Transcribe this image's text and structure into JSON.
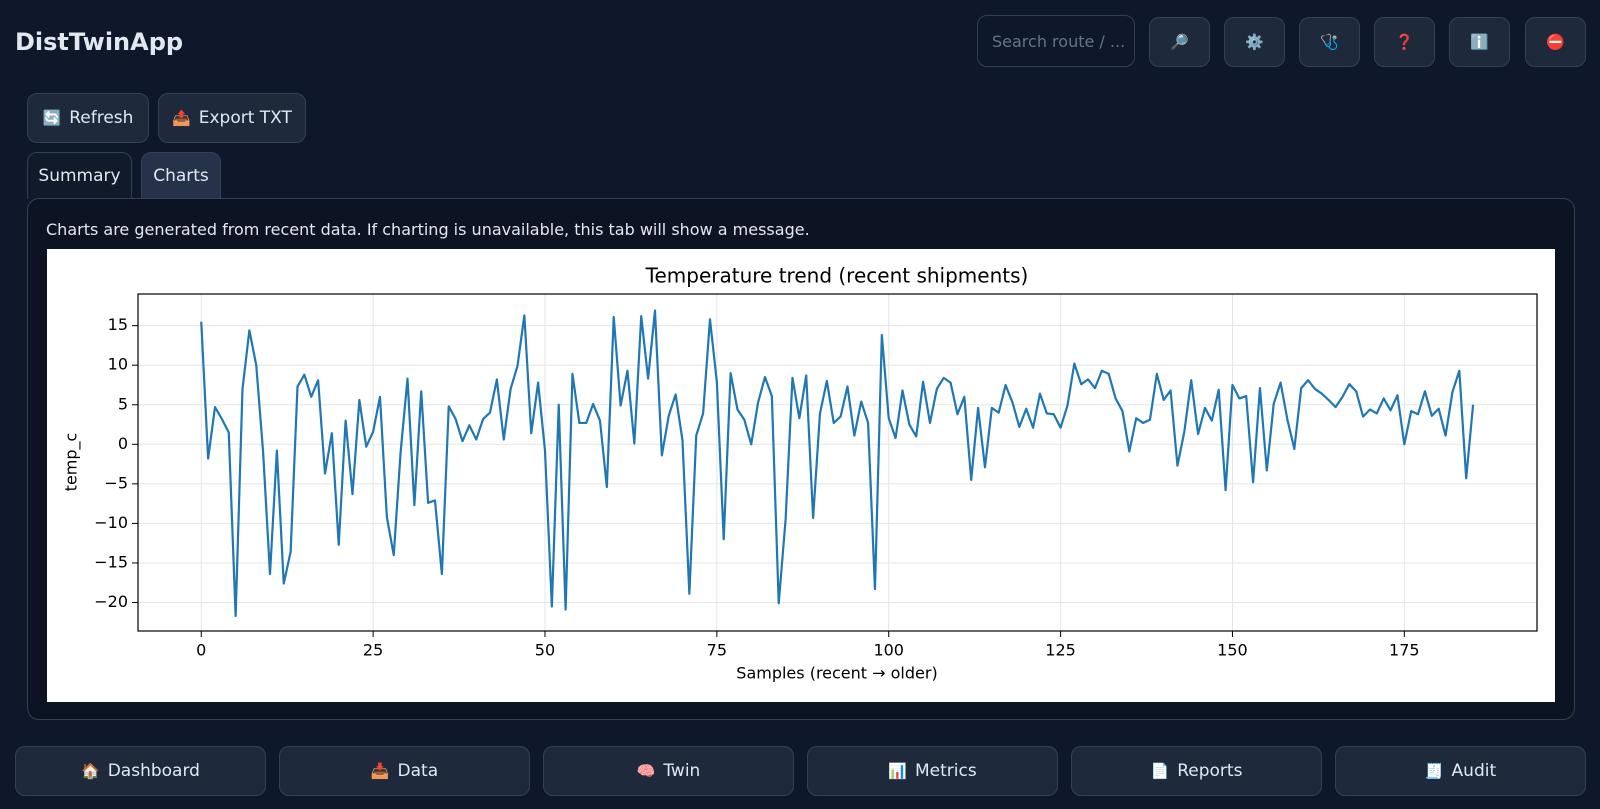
{
  "app": {
    "title": "DistTwinApp",
    "search_placeholder": "Search route / ...",
    "icon_buttons": [
      "🔎",
      "⚙️",
      "🩺",
      "❓",
      "ℹ️",
      "⛔"
    ]
  },
  "toolbar": [
    {
      "icon": "🔄",
      "label": "Refresh"
    },
    {
      "icon": "📤",
      "label": "Export TXT"
    }
  ],
  "tabs": [
    "Summary",
    "Charts"
  ],
  "panel": {
    "message": "Charts are generated from recent data. If charting is unavailable, this tab will show a message."
  },
  "nav": [
    {
      "icon": "🏠",
      "label": "Dashboard"
    },
    {
      "icon": "📥",
      "label": "Data"
    },
    {
      "icon": "🧠",
      "label": "Twin"
    },
    {
      "icon": "📊",
      "label": "Metrics"
    },
    {
      "icon": "📄",
      "label": "Reports"
    },
    {
      "icon": "🧾",
      "label": "Audit"
    }
  ],
  "chart_data": {
    "type": "line",
    "title": "Temperature trend (recent shipments)",
    "x_label": "Samples (recent → older)",
    "y_label": "temp_c",
    "color": "#1f77b4",
    "grid": true,
    "xlim": [
      -9.2,
      194.3
    ],
    "ylim": [
      -23.6,
      19.0
    ],
    "xticks": [
      0,
      25,
      50,
      75,
      100,
      125,
      150,
      175
    ],
    "yticks": [
      {
        "value": -20,
        "label": "−20"
      },
      {
        "value": -15,
        "label": "−15"
      },
      {
        "value": -10,
        "label": "−10"
      },
      {
        "value": -5,
        "label": "−5"
      },
      0,
      5,
      10,
      15
    ],
    "x": [
      0,
      1,
      2,
      3,
      4,
      5,
      6,
      7,
      8,
      9,
      10,
      11,
      12,
      13,
      14,
      15,
      16,
      17,
      18,
      19,
      20,
      21,
      22,
      23,
      24,
      25,
      26,
      27,
      28,
      29,
      30,
      31,
      32,
      33,
      34,
      35,
      36,
      37,
      38,
      39,
      40,
      41,
      42,
      43,
      44,
      45,
      46,
      47,
      48,
      49,
      50,
      51,
      52,
      53,
      54,
      55,
      56,
      57,
      58,
      59,
      60,
      61,
      62,
      63,
      64,
      65,
      66,
      67,
      68,
      69,
      70,
      71,
      72,
      73,
      74,
      75,
      76,
      77,
      78,
      79,
      80,
      81,
      82,
      83,
      84,
      85,
      86,
      87,
      88,
      89,
      90,
      91,
      92,
      93,
      94,
      95,
      96,
      97,
      98,
      99,
      100,
      101,
      102,
      103,
      104,
      105,
      106,
      107,
      108,
      109,
      110,
      111,
      112,
      113,
      114,
      115,
      116,
      117,
      118,
      119,
      120,
      121,
      122,
      123,
      124,
      125,
      126,
      127,
      128,
      129,
      130,
      131,
      132,
      133,
      134,
      135,
      136,
      137,
      138,
      139,
      140,
      141,
      142,
      143,
      144,
      145,
      146,
      147,
      148,
      149,
      150,
      151,
      152,
      153,
      154,
      155,
      156,
      157,
      158,
      159,
      160,
      161,
      162,
      163,
      164,
      165,
      166,
      167,
      168,
      169,
      170,
      171,
      172,
      173,
      174,
      175,
      176,
      177,
      178,
      179,
      180,
      181,
      182,
      183,
      184,
      185
    ],
    "values": [
      15.5,
      -1.8,
      4.7,
      3.2,
      1.5,
      -21.7,
      7,
      14.4,
      10,
      -1,
      -16.4,
      -0.8,
      -17.6,
      -13.6,
      7.3,
      8.8,
      6,
      8.1,
      -3.7,
      1.4,
      -12.7,
      3,
      -6.3,
      5.6,
      -0.3,
      1.6,
      6,
      -9.2,
      -14,
      -1,
      8.3,
      -7.7,
      6.7,
      -7.4,
      -7.1,
      -16.4,
      4.8,
      3.2,
      0.4,
      2.4,
      0.6,
      3.2,
      4,
      8.2,
      0.6,
      7,
      9.9,
      16.3,
      1.4,
      7.8,
      -0.8,
      -20.5,
      5,
      -20.9,
      8.9,
      2.7,
      2.7,
      5.1,
      3,
      -5.4,
      16.1,
      4.9,
      9.3,
      0.1,
      16.2,
      8.3,
      16.9,
      -1.4,
      3.6,
      6.3,
      0.5,
      -18.9,
      1.1,
      3.9,
      15.8,
      7.9,
      -12,
      9,
      4.4,
      3.1,
      0,
      5.3,
      8.5,
      6.1,
      -20.1,
      -9.5,
      8.4,
      3.3,
      8.7,
      -9.3,
      3.9,
      8,
      2.7,
      3.5,
      7.3,
      1.1,
      5.4,
      2.7,
      -18.3,
      13.8,
      3.3,
      0.8,
      6.8,
      2.5,
      1,
      7.9,
      2.7,
      7,
      8.4,
      7.8,
      3.8,
      6,
      -4.5,
      4.6,
      -2.9,
      4.6,
      4,
      7.5,
      5.3,
      2.2,
      4.5,
      2.1,
      6.4,
      3.9,
      3.8,
      2.1,
      4.9,
      10.2,
      7.6,
      8.2,
      7.1,
      9.3,
      8.9,
      5.8,
      4.2,
      -0.9,
      3.3,
      2.7,
      3.1,
      8.9,
      5.6,
      6.8,
      -2.7,
      1.6,
      8.1,
      1.3,
      4.6,
      3,
      6.9,
      -5.8,
      7.5,
      5.8,
      6.1,
      -4.8,
      7.1,
      -3.3,
      5.1,
      7.8,
      3.1,
      -0.6,
      7.1,
      8.1,
      7,
      6.4,
      5.6,
      4.7,
      6,
      7.6,
      6.7,
      3.5,
      4.4,
      3.9,
      5.8,
      4.3,
      6.2,
      0,
      4.2,
      3.8,
      6.7,
      3.6,
      4.5,
      1.1,
      6.6,
      9.3,
      -4.3,
      5
    ]
  }
}
